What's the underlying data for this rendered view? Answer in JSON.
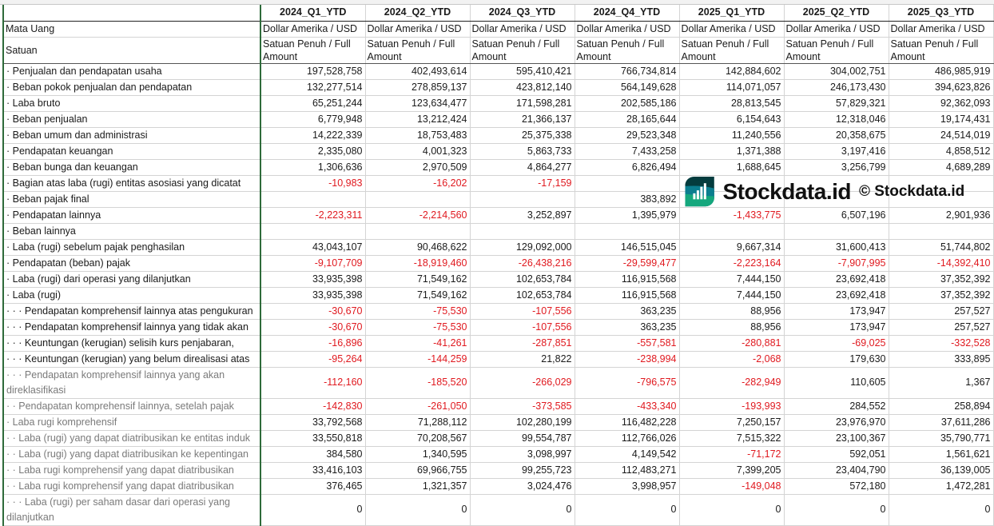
{
  "columns": [
    "2024_Q1_YTD",
    "2024_Q2_YTD",
    "2024_Q3_YTD",
    "2024_Q4_YTD",
    "2025_Q1_YTD",
    "2025_Q2_YTD",
    "2025_Q3_YTD"
  ],
  "meta": [
    {
      "label": "Mata Uang",
      "value": "Dollar Amerika / USD"
    },
    {
      "label": "Satuan",
      "value": "Satuan Penuh / Full Amount"
    }
  ],
  "rows": [
    {
      "label": "· Penjualan dan pendapatan usaha",
      "values": [
        "197,528,758",
        "402,493,614",
        "595,410,421",
        "766,734,814",
        "142,884,602",
        "304,002,751",
        "486,985,919"
      ]
    },
    {
      "label": "· Beban pokok penjualan dan pendapatan",
      "values": [
        "132,277,514",
        "278,859,137",
        "423,812,140",
        "564,149,628",
        "114,071,057",
        "246,173,430",
        "394,623,826"
      ]
    },
    {
      "label": "· Laba bruto",
      "values": [
        "65,251,244",
        "123,634,477",
        "171,598,281",
        "202,585,186",
        "28,813,545",
        "57,829,321",
        "92,362,093"
      ]
    },
    {
      "label": "· Beban penjualan",
      "values": [
        "6,779,948",
        "13,212,424",
        "21,366,137",
        "28,165,644",
        "6,154,643",
        "12,318,046",
        "19,174,431"
      ]
    },
    {
      "label": "· Beban umum dan administrasi",
      "values": [
        "14,222,339",
        "18,753,483",
        "25,375,338",
        "29,523,348",
        "11,240,556",
        "20,358,675",
        "24,514,019"
      ]
    },
    {
      "label": "· Pendapatan keuangan",
      "values": [
        "2,335,080",
        "4,001,323",
        "5,863,733",
        "7,433,258",
        "1,371,388",
        "3,197,416",
        "4,858,512"
      ]
    },
    {
      "label": "· Beban bunga dan keuangan",
      "values": [
        "1,306,636",
        "2,970,509",
        "4,864,277",
        "6,826,494",
        "1,688,645",
        "3,256,799",
        "4,689,289"
      ]
    },
    {
      "label": "· Bagian atas laba (rugi) entitas asosiasi yang dicatat",
      "values": [
        "-10,983",
        "-16,202",
        "-17,159",
        "",
        "",
        "",
        ""
      ]
    },
    {
      "label": "· Beban pajak final",
      "values": [
        "",
        "",
        "",
        "383,892",
        "",
        "",
        ""
      ]
    },
    {
      "label": "· Pendapatan lainnya",
      "values": [
        "-2,223,311",
        "-2,214,560",
        "3,252,897",
        "1,395,979",
        "-1,433,775",
        "6,507,196",
        "2,901,936"
      ]
    },
    {
      "label": "· Beban lainnya",
      "values": [
        "",
        "",
        "",
        "",
        "",
        "",
        ""
      ]
    },
    {
      "label": "· Laba (rugi) sebelum pajak penghasilan",
      "values": [
        "43,043,107",
        "90,468,622",
        "129,092,000",
        "146,515,045",
        "9,667,314",
        "31,600,413",
        "51,744,802"
      ]
    },
    {
      "label": "· Pendapatan (beban) pajak",
      "values": [
        "-9,107,709",
        "-18,919,460",
        "-26,438,216",
        "-29,599,477",
        "-2,223,164",
        "-7,907,995",
        "-14,392,410"
      ]
    },
    {
      "label": "· Laba (rugi) dari operasi yang dilanjutkan",
      "values": [
        "33,935,398",
        "71,549,162",
        "102,653,784",
        "116,915,568",
        "7,444,150",
        "23,692,418",
        "37,352,392"
      ]
    },
    {
      "label": "· Laba (rugi)",
      "values": [
        "33,935,398",
        "71,549,162",
        "102,653,784",
        "116,915,568",
        "7,444,150",
        "23,692,418",
        "37,352,392"
      ]
    },
    {
      "label": "· · · Pendapatan komprehensif lainnya atas pengukuran",
      "values": [
        "-30,670",
        "-75,530",
        "-107,556",
        "363,235",
        "88,956",
        "173,947",
        "257,527"
      ]
    },
    {
      "label": "· · · Pendapatan komprehensif lainnya yang tidak akan",
      "values": [
        "-30,670",
        "-75,530",
        "-107,556",
        "363,235",
        "88,956",
        "173,947",
        "257,527"
      ]
    },
    {
      "label": "· · · Keuntungan (kerugian) selisih kurs penjabaran,",
      "values": [
        "-16,896",
        "-41,261",
        "-287,851",
        "-557,581",
        "-280,881",
        "-69,025",
        "-332,528"
      ]
    },
    {
      "label": "· · · Keuntungan (kerugian) yang belum direalisasi atas",
      "values": [
        "-95,264",
        "-144,259",
        "21,822",
        "-238,994",
        "-2,068",
        "179,630",
        "333,895"
      ]
    },
    {
      "label": "· · · Pendapatan komprehensif lainnya yang akan direklasifikasi",
      "values": [
        "-112,160",
        "-185,520",
        "-266,029",
        "-796,575",
        "-282,949",
        "110,605",
        "1,367"
      ]
    },
    {
      "label": "· · Pendapatan komprehensif lainnya, setelah pajak",
      "values": [
        "-142,830",
        "-261,050",
        "-373,585",
        "-433,340",
        "-193,993",
        "284,552",
        "258,894"
      ]
    },
    {
      "label": "· Laba rugi komprehensif",
      "values": [
        "33,792,568",
        "71,288,112",
        "102,280,199",
        "116,482,228",
        "7,250,157",
        "23,976,970",
        "37,611,286"
      ]
    },
    {
      "label": "· · Laba (rugi) yang dapat diatribusikan ke entitas induk",
      "values": [
        "33,550,818",
        "70,208,567",
        "99,554,787",
        "112,766,026",
        "7,515,322",
        "23,100,367",
        "35,790,771"
      ]
    },
    {
      "label": "· · Laba (rugi) yang dapat diatribusikan ke kepentingan",
      "values": [
        "384,580",
        "1,340,595",
        "3,098,997",
        "4,149,542",
        "-71,172",
        "592,051",
        "1,561,621"
      ]
    },
    {
      "label": "· · Laba rugi komprehensif yang dapat diatribusikan",
      "values": [
        "33,416,103",
        "69,966,755",
        "99,255,723",
        "112,483,271",
        "7,399,205",
        "23,404,790",
        "36,139,005"
      ]
    },
    {
      "label": "· · Laba rugi komprehensif yang dapat diatribusikan",
      "values": [
        "376,465",
        "1,321,357",
        "3,024,476",
        "3,998,957",
        "-149,048",
        "572,180",
        "1,472,281"
      ]
    },
    {
      "label": "· · · Laba (rugi) per saham dasar dari operasi yang dilanjutkan",
      "values": [
        "0",
        "0",
        "0",
        "0",
        "0",
        "0",
        "0"
      ]
    }
  ],
  "watermark": {
    "copyright": "© Stockdata.id",
    "brand": "Stockdata.id"
  },
  "colors": {
    "negative": "#e0191f",
    "logo_dark": "#043c3e",
    "logo_mid": "#0b7e8f",
    "logo_green": "#15a77d"
  }
}
